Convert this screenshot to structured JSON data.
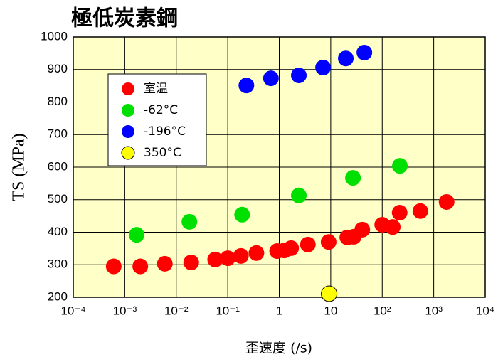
{
  "chart_data": {
    "type": "scatter",
    "title": "極低炭素鋼",
    "x_label": "歪速度 (/s)",
    "y_label": "TS (MPa)",
    "x_scale": "log",
    "grid": true,
    "legend_position": "upper left",
    "xlim": [
      0.0001,
      10000
    ],
    "ylim": [
      200,
      1000
    ],
    "xticks": [
      {
        "value": 0.0001,
        "label": "10⁻⁴"
      },
      {
        "value": 0.001,
        "label": "10⁻³"
      },
      {
        "value": 0.01,
        "label": "10⁻²"
      },
      {
        "value": 0.1,
        "label": "10⁻¹"
      },
      1,
      10,
      {
        "value": 100,
        "label": "10²"
      },
      {
        "value": 1000,
        "label": "10³"
      },
      {
        "value": 10000,
        "label": "10⁴"
      }
    ],
    "yticks": [
      200,
      300,
      400,
      500,
      600,
      700,
      800,
      900,
      1000
    ],
    "series": [
      {
        "name": "室温",
        "color": "#ff0000",
        "x": [
          0.00061,
          0.002,
          0.006,
          0.0195,
          0.057,
          0.1,
          0.18,
          0.36,
          0.91,
          1.26,
          1.7,
          3.6,
          9.1,
          21,
          28,
          41,
          100,
          160,
          218,
          550,
          1780
        ],
        "values": [
          295,
          295,
          303,
          307,
          316,
          320,
          327,
          336,
          342,
          344,
          351,
          362,
          370,
          384,
          386,
          408,
          423,
          416,
          460,
          465,
          493
        ]
      },
      {
        "name": "-62°C",
        "color": "#00e000",
        "x": [
          0.0017,
          0.018,
          0.19,
          2.4,
          27,
          220
        ],
        "values": [
          392,
          432,
          454,
          513,
          567,
          604
        ]
      },
      {
        "name": "-196°C",
        "color": "#0000ff",
        "x": [
          0.23,
          0.69,
          2.4,
          7.1,
          19.6,
          45
        ],
        "values": [
          851,
          873,
          882,
          906,
          934,
          952
        ]
      },
      {
        "name": "350°C",
        "color": "#ffff00",
        "x": [
          9.3
        ],
        "values": [
          211
        ]
      }
    ]
  }
}
